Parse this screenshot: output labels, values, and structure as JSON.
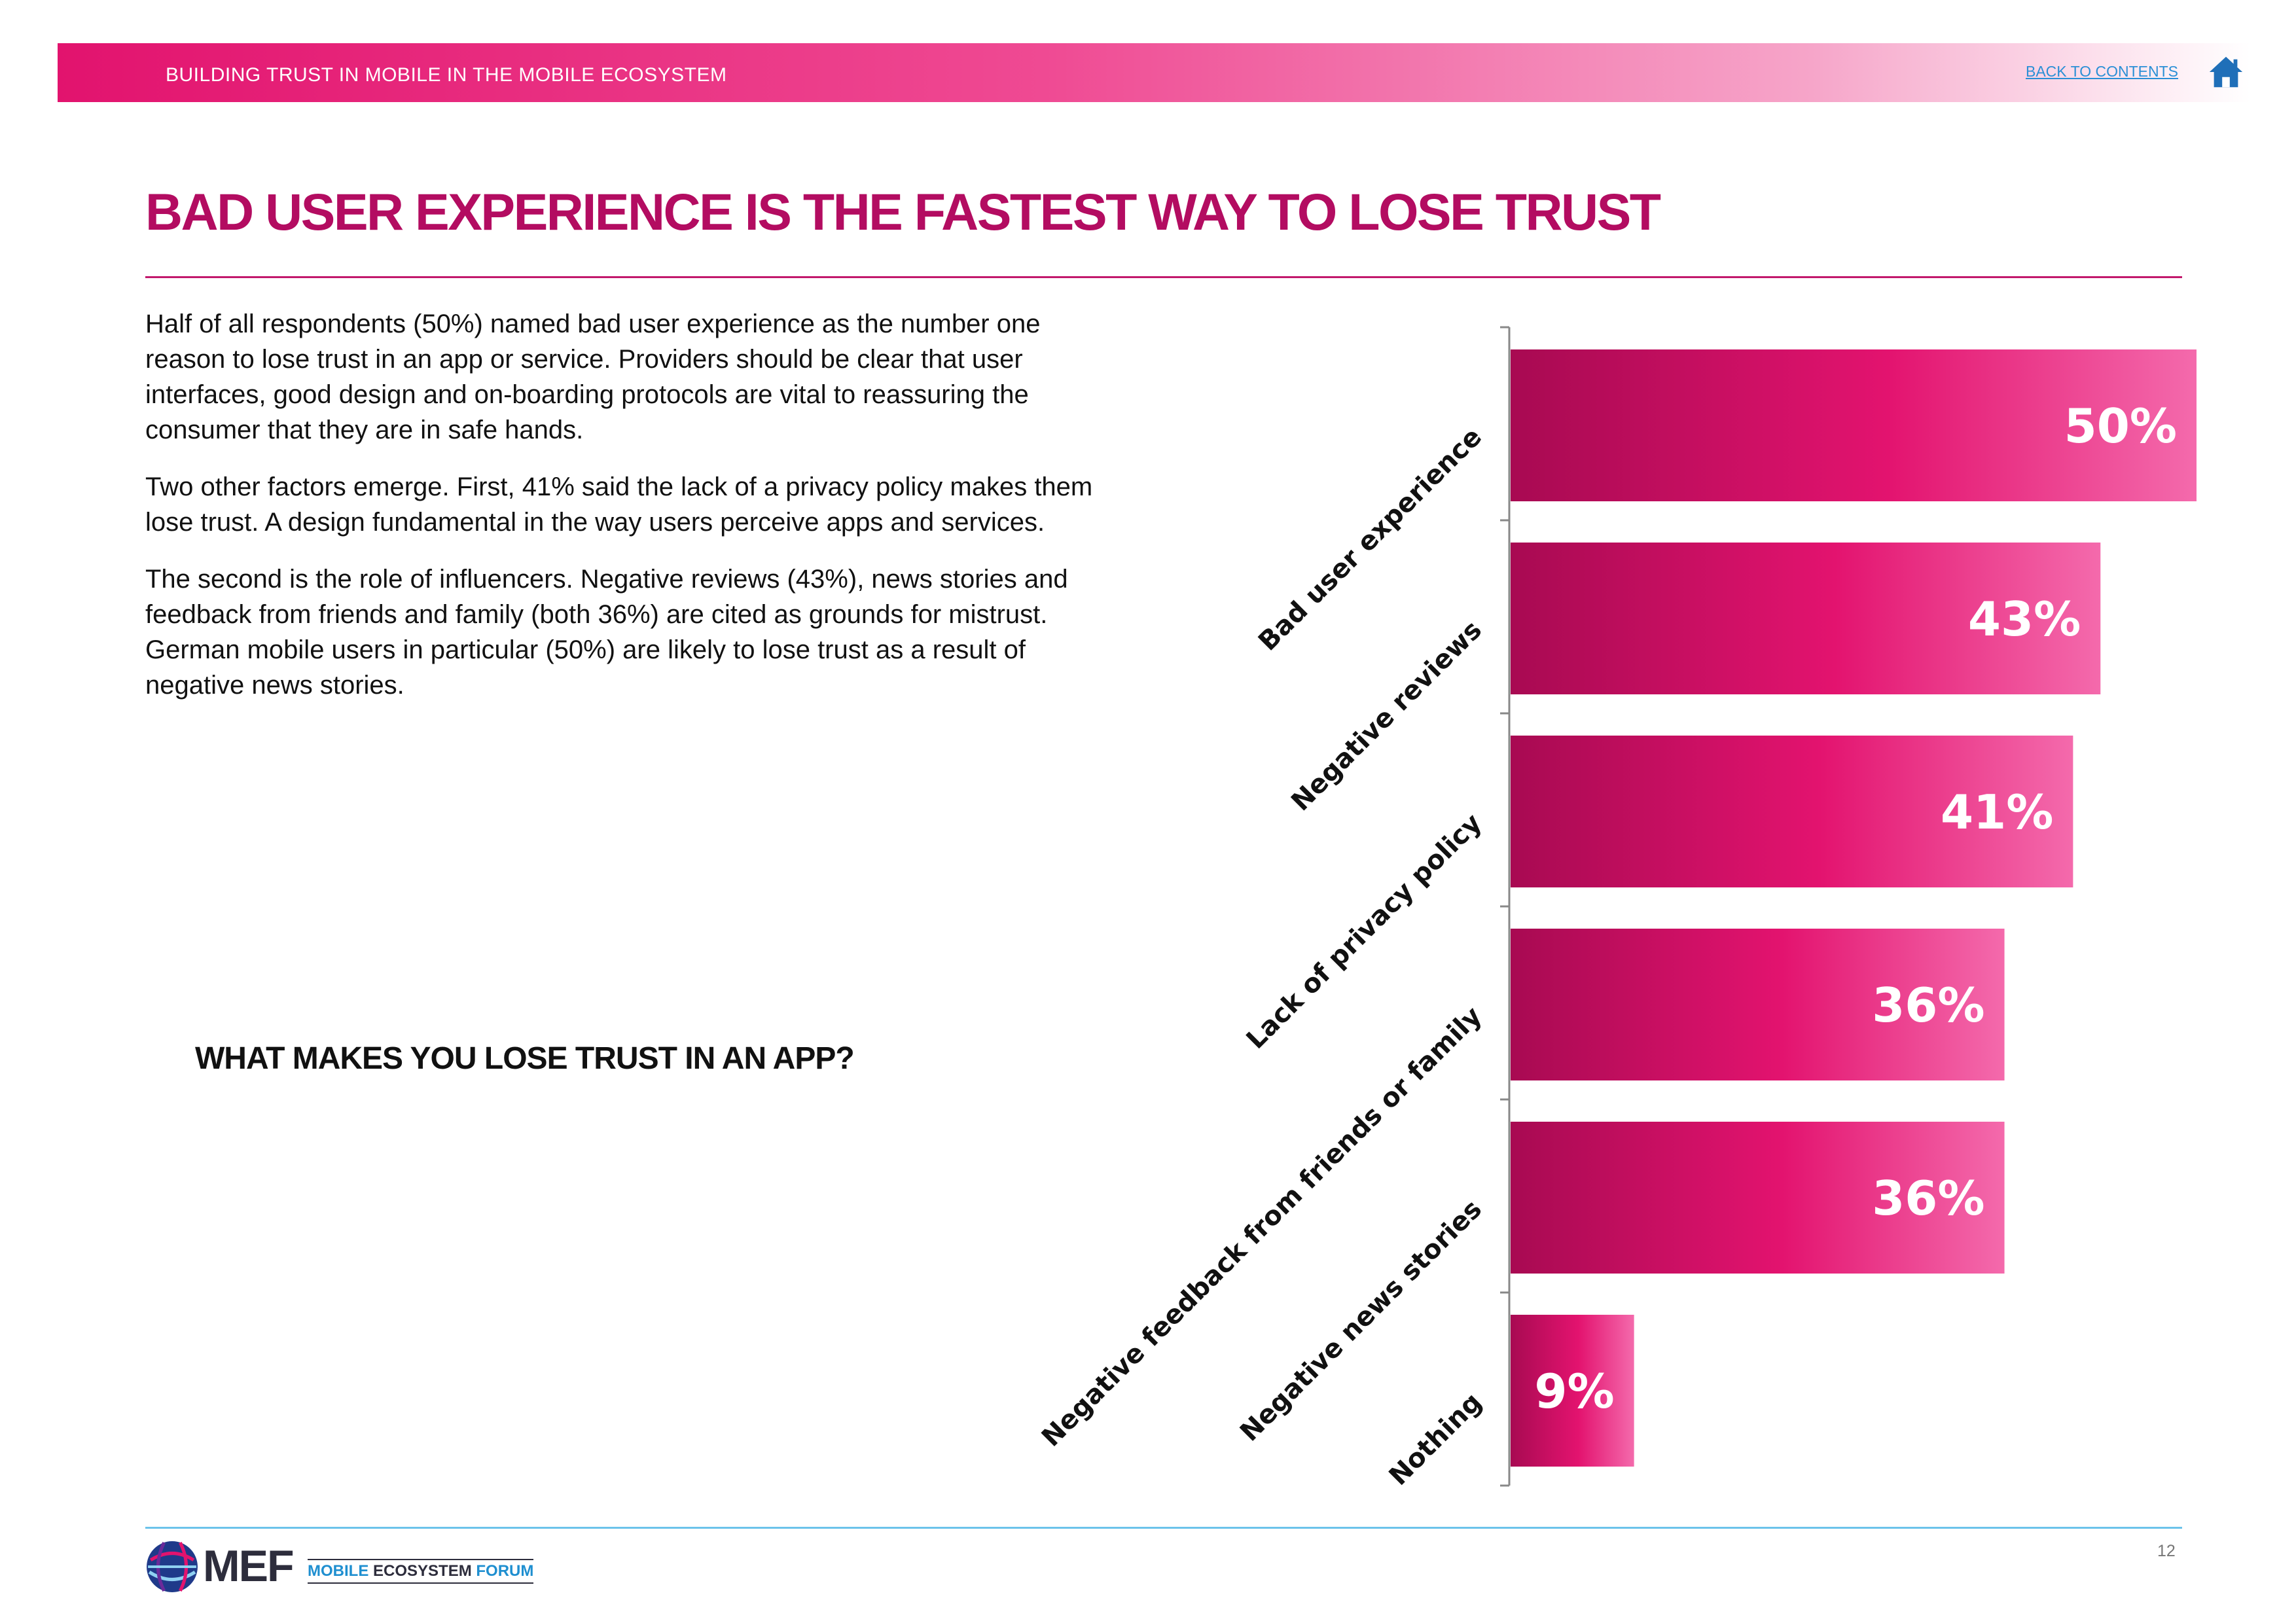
{
  "header": {
    "title": "BUILDING TRUST IN MOBILE IN THE MOBILE ECOSYSTEM",
    "back_link": "BACK TO CONTENTS",
    "home_icon": "home-icon"
  },
  "page": {
    "title": "BAD USER EXPERIENCE IS THE FASTEST WAY TO LOSE TRUST",
    "paragraphs": [
      "Half of all respondents (50%) named bad user experience as the number one reason to lose trust in an app or service. Providers should be clear that user interfaces, good design and on-boarding protocols are vital to reassuring the consumer that they are in safe hands.",
      "Two other factors emerge. First, 41% said the lack of a privacy policy makes them lose trust. A design fundamental in the way users perceive apps and services.",
      "The second is the role of influencers. Negative reviews (43%), news stories and feedback from friends and family (both 36%) are cited as grounds for mistrust. German mobile users in particular (50%) are likely to lose trust as a result of negative news stories."
    ]
  },
  "chart_data": {
    "type": "bar",
    "orientation": "horizontal",
    "title": "WHAT MAKES YOU LOSE TRUST IN AN APP?",
    "categories": [
      "Bad user experience",
      "Negative reviews",
      "Lack of privacy policy",
      "Negative feedback from friends or family",
      "Negative news stories",
      "Nothing"
    ],
    "values": [
      50,
      43,
      41,
      36,
      36,
      9
    ],
    "value_labels": [
      "50%",
      "43%",
      "41%",
      "36%",
      "36%",
      "9%"
    ],
    "unit": "%",
    "xlim": [
      0,
      50
    ],
    "grid": false,
    "colors": {
      "bar_start": "#a80a52",
      "bar_mid": "#e3136f",
      "bar_end": "#f46aac"
    }
  },
  "footer": {
    "page_number": "12",
    "logo": {
      "brand": "MEF",
      "name_part1": "MOBILE ",
      "name_part2": "ECOSYSTEM ",
      "name_part3": "FORUM"
    }
  },
  "colors": {
    "accent": "#e2136e",
    "title": "#b30c61",
    "link": "#2a8fd6",
    "footer_rule": "#6cc3ea"
  }
}
